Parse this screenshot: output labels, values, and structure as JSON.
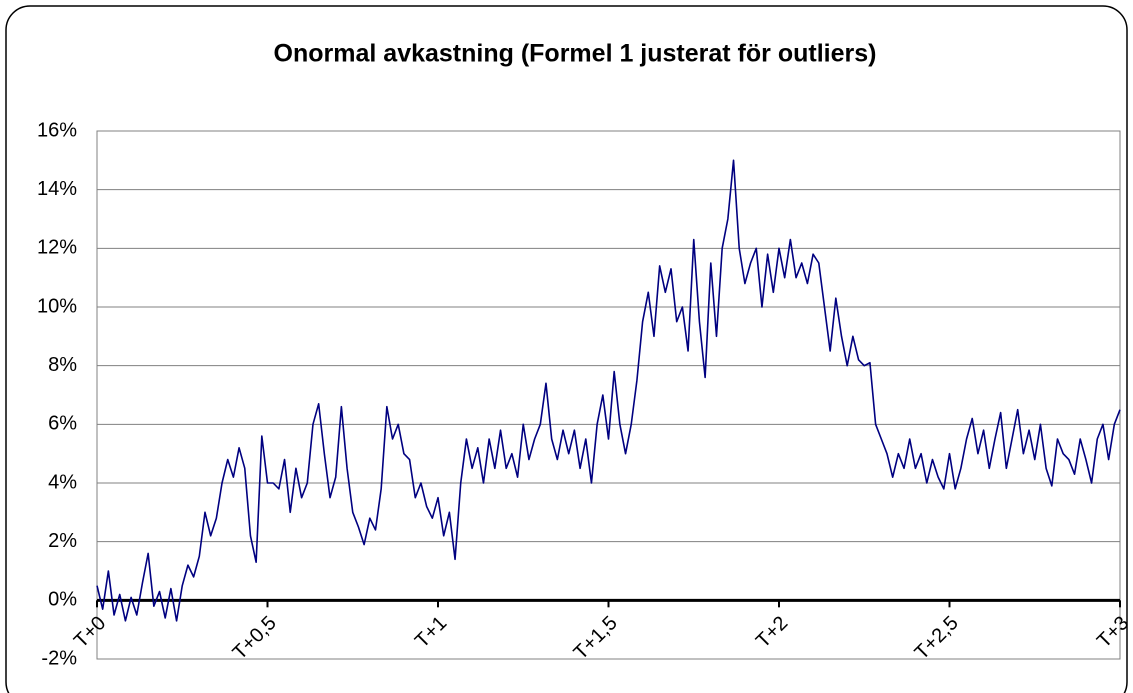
{
  "chart_data": {
    "type": "line",
    "title": "Onormal avkastning (Formel 1 justerat för outliers)",
    "categories": [
      "T+0",
      null,
      null,
      null,
      null,
      null,
      null,
      null,
      null,
      null,
      null,
      null,
      null,
      null,
      null,
      null,
      null,
      null,
      null,
      null,
      null,
      null,
      null,
      null,
      null,
      null,
      null,
      null,
      null,
      null,
      "T+0,5",
      null,
      null,
      null,
      null,
      null,
      null,
      null,
      null,
      null,
      null,
      null,
      null,
      null,
      null,
      null,
      null,
      null,
      null,
      null,
      null,
      null,
      null,
      null,
      null,
      null,
      null,
      null,
      null,
      null,
      "T+1",
      null,
      null,
      null,
      null,
      null,
      null,
      null,
      null,
      null,
      null,
      null,
      null,
      null,
      null,
      null,
      null,
      null,
      null,
      null,
      null,
      null,
      null,
      null,
      null,
      null,
      null,
      null,
      null,
      null,
      "T+1,5",
      null,
      null,
      null,
      null,
      null,
      null,
      null,
      null,
      null,
      null,
      null,
      null,
      null,
      null,
      null,
      null,
      null,
      null,
      null,
      null,
      null,
      null,
      null,
      null,
      null,
      null,
      null,
      null,
      null,
      "T+2",
      null,
      null,
      null,
      null,
      null,
      null,
      null,
      null,
      null,
      null,
      null,
      null,
      null,
      null,
      null,
      null,
      null,
      null,
      null,
      null,
      null,
      null,
      null,
      null,
      null,
      null,
      null,
      null,
      null,
      "T+2,5",
      null,
      null,
      null,
      null,
      null,
      null,
      null,
      null,
      null,
      null,
      null,
      null,
      null,
      null,
      null,
      null,
      null,
      null,
      null,
      null,
      null,
      null,
      null,
      null,
      null,
      null,
      null,
      null,
      null,
      "T+3"
    ],
    "series": [
      {
        "color": "#000080",
        "values": [
          0.5,
          -0.3,
          1.0,
          -0.5,
          0.2,
          -0.7,
          0.1,
          -0.5,
          0.6,
          1.6,
          -0.2,
          0.3,
          -0.6,
          0.4,
          -0.7,
          0.5,
          1.2,
          0.8,
          1.5,
          3.0,
          2.2,
          2.8,
          4.0,
          4.8,
          4.2,
          5.2,
          4.5,
          2.2,
          1.3,
          5.6,
          4.0,
          4.0,
          3.8,
          4.8,
          3.0,
          4.5,
          3.5,
          4.0,
          6.0,
          6.7,
          5.0,
          3.5,
          4.2,
          6.6,
          4.5,
          3.0,
          2.5,
          1.9,
          2.8,
          2.4,
          3.8,
          6.6,
          5.5,
          6.0,
          5.0,
          4.8,
          3.5,
          4.0,
          3.2,
          2.8,
          3.5,
          2.2,
          3.0,
          1.4,
          4.0,
          5.5,
          4.5,
          5.2,
          4.0,
          5.5,
          4.5,
          5.8,
          4.5,
          5.0,
          4.2,
          6.0,
          4.8,
          5.5,
          6.0,
          7.4,
          5.5,
          4.8,
          5.8,
          5.0,
          5.8,
          4.5,
          5.5,
          4.0,
          6.0,
          7.0,
          5.5,
          7.8,
          6.0,
          5.0,
          6.0,
          7.5,
          9.5,
          10.5,
          9.0,
          11.4,
          10.5,
          11.3,
          9.5,
          10.0,
          8.5,
          12.3,
          9.5,
          7.6,
          11.5,
          9.0,
          12.0,
          13.0,
          15.0,
          12.0,
          10.8,
          11.5,
          12.0,
          10.0,
          11.8,
          10.5,
          12.0,
          11.0,
          12.3,
          11.0,
          11.5,
          10.8,
          11.8,
          11.5,
          10.0,
          8.5,
          10.3,
          9.0,
          8.0,
          9.0,
          8.2,
          8.0,
          8.1,
          6.0,
          5.5,
          5.0,
          4.2,
          5.0,
          4.5,
          5.5,
          4.5,
          5.0,
          4.0,
          4.8,
          4.2,
          3.8,
          5.0,
          3.8,
          4.5,
          5.5,
          6.2,
          5.0,
          5.8,
          4.5,
          5.5,
          6.4,
          4.5,
          5.5,
          6.5,
          5.0,
          5.8,
          4.8,
          6.0,
          4.5,
          3.9,
          5.5,
          5.0,
          4.8,
          4.3,
          5.5,
          4.8,
          4.0,
          5.5,
          6.0,
          4.8,
          6.0,
          6.5
        ]
      }
    ],
    "ylim": [
      -2,
      16
    ],
    "yticks": [
      {
        "value": -2,
        "label": "-2%"
      },
      {
        "value": 0,
        "label": "0%"
      },
      {
        "value": 2,
        "label": "2%"
      },
      {
        "value": 4,
        "label": "4%"
      },
      {
        "value": 6,
        "label": "6%"
      },
      {
        "value": 8,
        "label": "8%"
      },
      {
        "value": 10,
        "label": "10%"
      },
      {
        "value": 12,
        "label": "12%"
      },
      {
        "value": 14,
        "label": "14%"
      },
      {
        "value": 16,
        "label": "16%"
      }
    ],
    "grid": true
  }
}
